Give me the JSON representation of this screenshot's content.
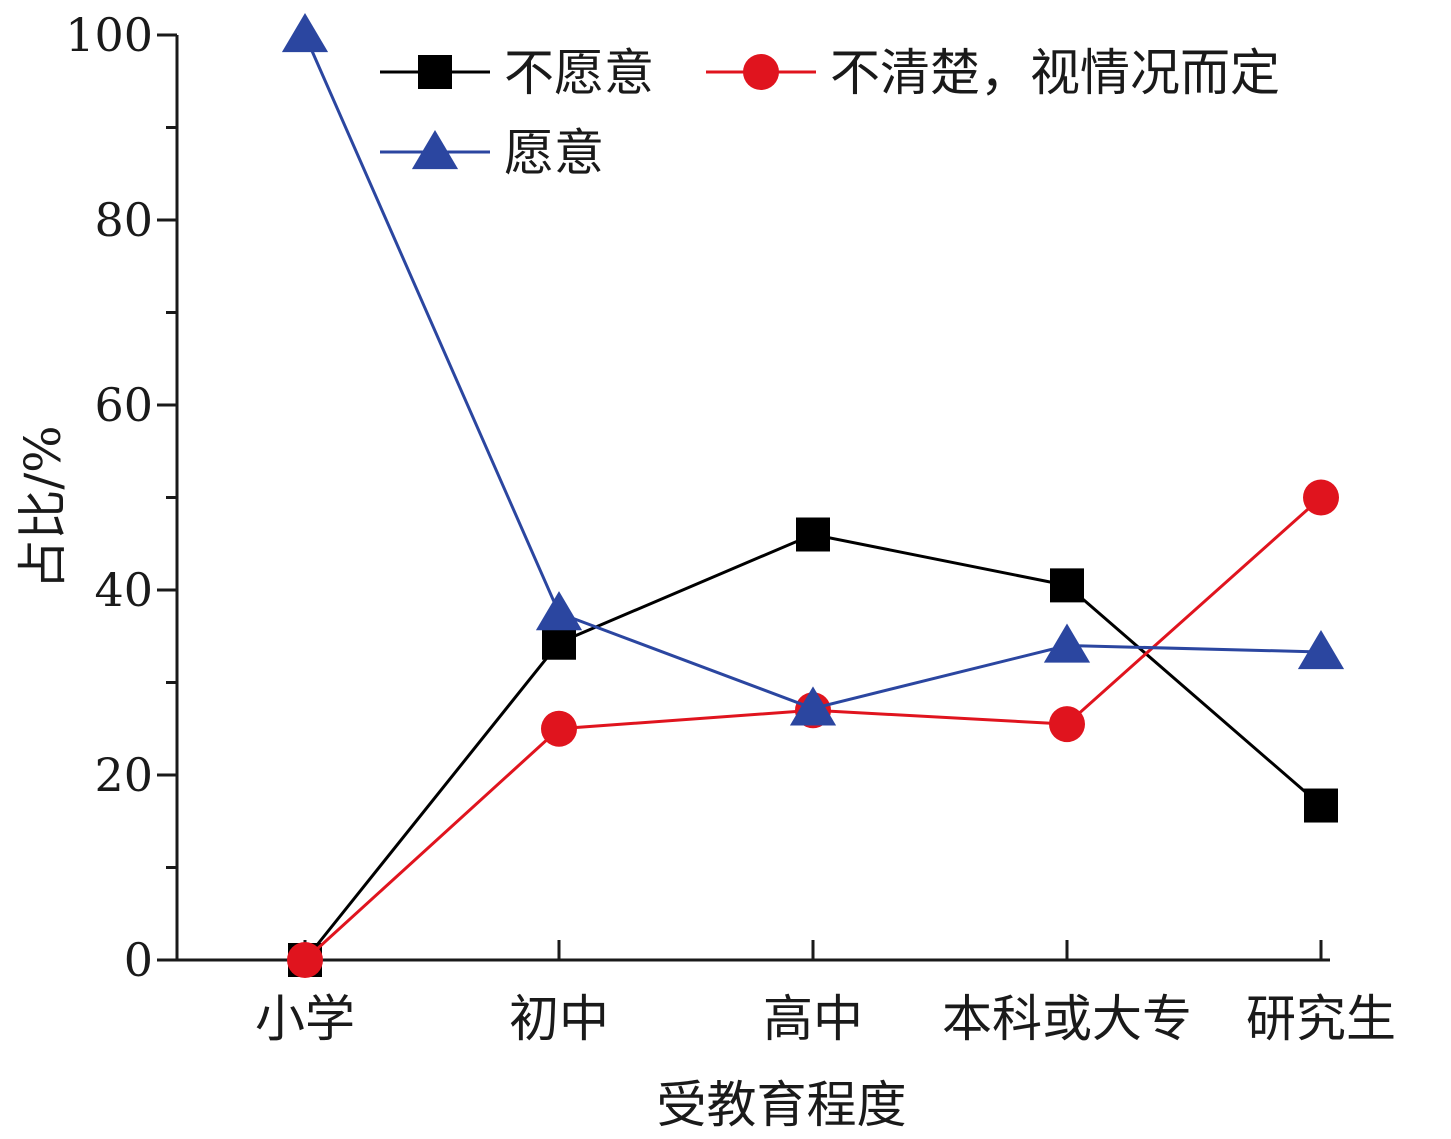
{
  "chart_data": {
    "type": "line",
    "xlabel": "受教育程度",
    "ylabel": "占比/%",
    "categories": [
      "小学",
      "初中",
      "高中",
      "本科或大专",
      "研究生"
    ],
    "ylim": [
      0,
      100
    ],
    "yticks": [
      0,
      20,
      40,
      60,
      80,
      100
    ],
    "grid": false,
    "legend_position": "top-right",
    "series": [
      {
        "name": "不愿意",
        "color": "#000000",
        "marker": "square",
        "values": [
          0,
          34.3,
          46.0,
          40.5,
          16.7
        ]
      },
      {
        "name": "不清楚，视情况而定",
        "color": "#e0141e",
        "marker": "circle",
        "values": [
          0,
          25.0,
          27.0,
          25.5,
          50.0
        ]
      },
      {
        "name": "愿意",
        "color": "#2b46a0",
        "marker": "triangle",
        "values": [
          100,
          37.5,
          27.2,
          34.0,
          33.3
        ]
      }
    ]
  }
}
